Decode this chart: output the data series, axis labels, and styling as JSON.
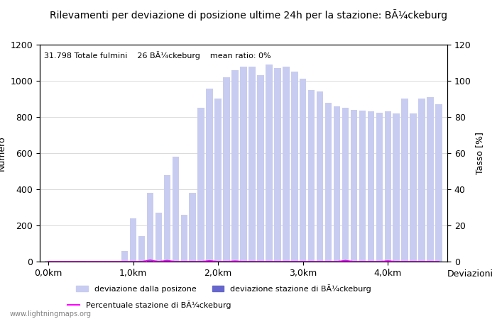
{
  "title": "Rilevamenti per deviazione di posizione ultime 24h per la stazione: BÃ¼ckeburg",
  "subtitle": "31.798 Totale fulmini    26 BÃ¼ckeburg    mean ratio: 0%",
  "xlabel": "Deviazioni",
  "ylabel_left": "Numero",
  "ylabel_right": "Tasso [%]",
  "watermark": "www.lightningmaps.org",
  "ylim_left": [
    0,
    1200
  ],
  "ylim_right": [
    0,
    120
  ],
  "xtick_labels": [
    "0,0km",
    "1,0km",
    "2,0km",
    "3,0km",
    "4,0km"
  ],
  "xtick_positions": [
    0,
    10,
    20,
    30,
    40
  ],
  "ytick_left": [
    0,
    200,
    400,
    600,
    800,
    1000,
    1200
  ],
  "ytick_right": [
    0,
    20,
    40,
    60,
    80,
    100,
    120
  ],
  "bar_width": 0.8,
  "bar_color_all": "#c8ccf0",
  "bar_color_station": "#6666cc",
  "line_color": "#ff00ff",
  "legend_label_all": "deviazione dalla posizone",
  "legend_label_station": "deviazione stazione di BÃ¼ckeburg",
  "legend_label_pct": "Percentuale stazione di BÃ¼ckeburg",
  "all_values": [
    2,
    1,
    1,
    1,
    2,
    1,
    1,
    1,
    1,
    60,
    240,
    140,
    380,
    270,
    480,
    580,
    260,
    380,
    850,
    955,
    900,
    1020,
    1060,
    1080,
    1080,
    1030,
    1090,
    1070,
    1080,
    1050,
    1010,
    950,
    940,
    880,
    860,
    850,
    840,
    835,
    830,
    825,
    830,
    820,
    900,
    820,
    900,
    910,
    870
  ],
  "station_values": [
    0,
    0,
    0,
    0,
    0,
    0,
    0,
    0,
    0,
    0,
    0,
    0,
    3,
    0,
    3,
    0,
    0,
    0,
    0,
    5,
    0,
    0,
    3,
    0,
    0,
    0,
    0,
    0,
    0,
    0,
    0,
    0,
    0,
    0,
    0,
    5,
    0,
    0,
    0,
    0,
    3,
    0,
    0,
    0,
    0,
    0,
    0
  ],
  "pct_values": [
    0,
    0,
    0,
    0,
    0,
    0,
    0,
    0,
    0,
    0,
    0,
    0,
    0.8,
    0,
    0.6,
    0,
    0,
    0,
    0,
    0.5,
    0,
    0,
    0.3,
    0,
    0,
    0,
    0,
    0,
    0,
    0,
    0,
    0,
    0,
    0,
    0,
    0.6,
    0,
    0,
    0,
    0,
    0.4,
    0,
    0,
    0,
    0,
    0,
    0
  ],
  "grid_color": "#cccccc",
  "bg_color": "#ffffff",
  "font_size": 9,
  "title_font_size": 10
}
